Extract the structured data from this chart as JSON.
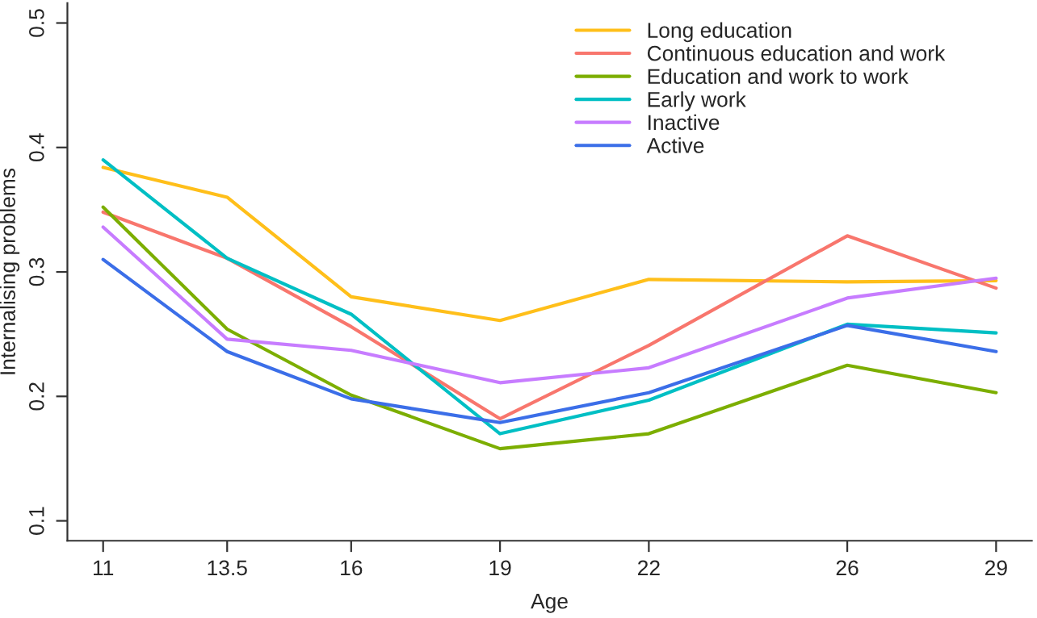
{
  "chart_data": {
    "type": "line",
    "xlabel": "Age",
    "ylabel": "Internalising problems",
    "x": [
      11,
      13.5,
      16,
      19,
      22,
      26,
      29
    ],
    "series": [
      {
        "name": "Long education",
        "color": "#ffbf1a",
        "values": [
          0.384,
          0.36,
          0.28,
          0.261,
          0.294,
          0.292,
          0.293
        ]
      },
      {
        "name": "Continuous education and work",
        "color": "#f8766d",
        "values": [
          0.348,
          0.311,
          0.256,
          0.182,
          0.241,
          0.329,
          0.287
        ]
      },
      {
        "name": "Education and work to work",
        "color": "#7cae00",
        "values": [
          0.352,
          0.254,
          0.201,
          0.158,
          0.17,
          0.225,
          0.203
        ]
      },
      {
        "name": "Early work",
        "color": "#00bfc4",
        "values": [
          0.39,
          0.311,
          0.266,
          0.17,
          0.197,
          0.258,
          0.251
        ]
      },
      {
        "name": "Inactive",
        "color": "#c77cff",
        "values": [
          0.336,
          0.246,
          0.237,
          0.211,
          0.223,
          0.279,
          0.295
        ]
      },
      {
        "name": "Active",
        "color": "#3b6ee8",
        "values": [
          0.31,
          0.236,
          0.198,
          0.179,
          0.203,
          0.257,
          0.236
        ]
      }
    ],
    "xlim": [
      10.28,
      29.72
    ],
    "ylim": [
      0.084,
      0.516
    ],
    "xticks": [
      11,
      13.5,
      16,
      19,
      22,
      26,
      29
    ],
    "yticks": [
      0.1,
      0.2,
      0.3,
      0.4,
      0.5
    ],
    "legend": "top right",
    "grid": false,
    "marker": "none",
    "line_style": "solid"
  }
}
